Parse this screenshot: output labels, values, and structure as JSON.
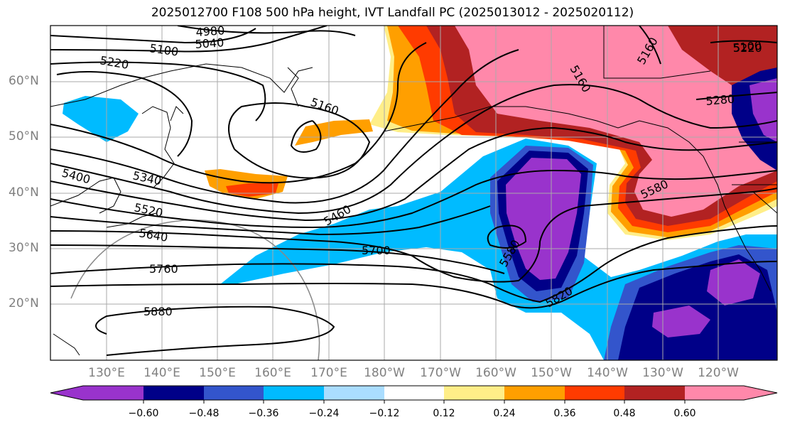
{
  "title": "2025012700 F108 500 hPa height, IVT Landfall PC (2025013012 - 2025020112)",
  "colors": {
    "neg060": "#9933cc",
    "neg048": "#000088",
    "neg036": "#3355cc",
    "neg024": "#00bbff",
    "neg012": "#aaddff",
    "zero": "#ffffff",
    "pos012": "#ffee88",
    "pos024": "#ff9f00",
    "pos036": "#ff3b00",
    "pos048": "#b22222",
    "pos060": "#ff88aa",
    "contour": "#000000",
    "grid": "#aaaaaa",
    "circle": "#888888"
  },
  "lat_labels": [
    "60°N",
    "50°N",
    "40°N",
    "30°N",
    "20°N"
  ],
  "lon_labels": [
    "130°E",
    "140°E",
    "150°E",
    "160°E",
    "170°E",
    "180°W",
    "170°W",
    "160°W",
    "150°W",
    "140°W",
    "130°W",
    "120°W"
  ],
  "contour_labels": [
    "4980",
    "5040",
    "5100",
    "5160",
    "5220",
    "5160",
    "5100",
    "5160",
    "5220",
    "5280",
    "5340",
    "5400",
    "5460",
    "5520",
    "5580",
    "5580",
    "5640",
    "5700",
    "5760",
    "5820",
    "5880"
  ],
  "colorbar": {
    "ticks": [
      "−0.60",
      "−0.48",
      "−0.36",
      "−0.24",
      "−0.12",
      "0.12",
      "0.24",
      "0.36",
      "0.48",
      "0.60"
    ]
  }
}
